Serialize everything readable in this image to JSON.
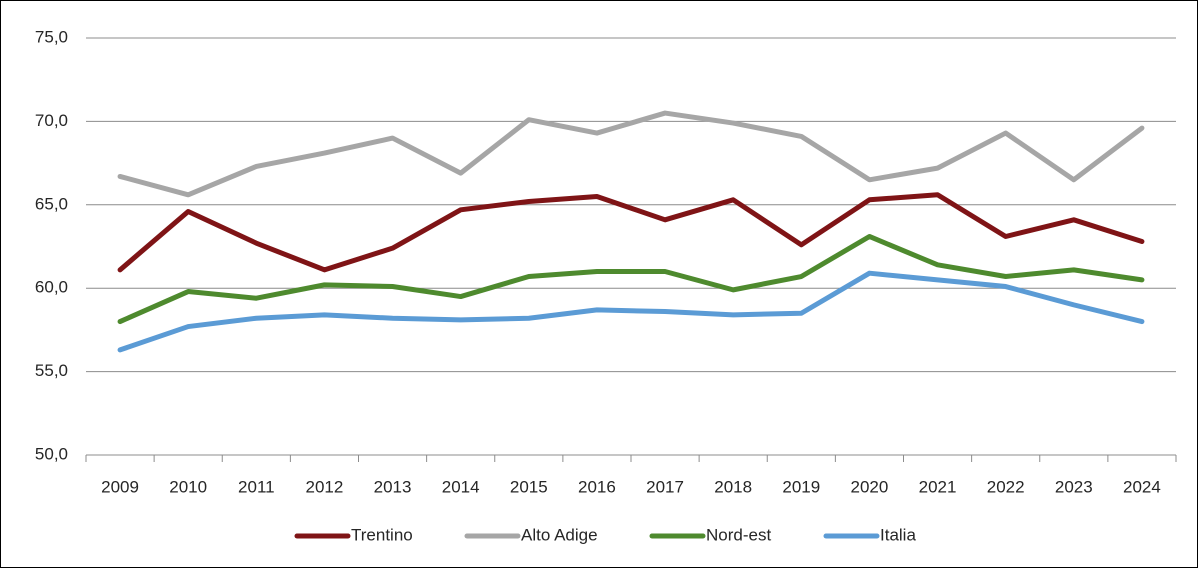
{
  "chart_data": {
    "type": "line",
    "categories": [
      "2009",
      "2010",
      "2011",
      "2012",
      "2013",
      "2014",
      "2015",
      "2016",
      "2017",
      "2018",
      "2019",
      "2020",
      "2021",
      "2022",
      "2023",
      "2024"
    ],
    "series": [
      {
        "name": "Trentino",
        "color": "#7f1416",
        "values": [
          61.1,
          64.6,
          62.7,
          61.1,
          62.4,
          64.7,
          65.2,
          65.5,
          64.1,
          65.3,
          62.6,
          65.3,
          65.6,
          63.1,
          64.1,
          62.8
        ]
      },
      {
        "name": "Alto Adige",
        "color": "#a6a6a6",
        "values": [
          66.7,
          65.6,
          67.3,
          68.1,
          69.0,
          66.9,
          70.1,
          69.3,
          70.5,
          69.9,
          69.1,
          66.5,
          67.2,
          69.3,
          66.5,
          69.6
        ]
      },
      {
        "name": "Nord-est",
        "color": "#4e8a2e",
        "values": [
          58.0,
          59.8,
          59.4,
          60.2,
          60.1,
          59.5,
          60.7,
          61.0,
          61.0,
          59.9,
          60.7,
          63.1,
          61.4,
          60.7,
          61.1,
          60.5
        ]
      },
      {
        "name": "Italia",
        "color": "#5b9bd5",
        "values": [
          56.3,
          57.7,
          58.2,
          58.4,
          58.2,
          58.1,
          58.2,
          58.7,
          58.6,
          58.4,
          58.5,
          60.9,
          60.5,
          60.1,
          59.0,
          58.0
        ]
      }
    ],
    "ylim": [
      50,
      75
    ],
    "yticks": [
      {
        "value": 50,
        "label": "50,0"
      },
      {
        "value": 55,
        "label": "55,0"
      },
      {
        "value": 60,
        "label": "60,0"
      },
      {
        "value": 65,
        "label": "65,0"
      },
      {
        "value": 70,
        "label": "70,0"
      },
      {
        "value": 75,
        "label": "75,0"
      }
    ],
    "grid": true,
    "legend": "bottom"
  }
}
